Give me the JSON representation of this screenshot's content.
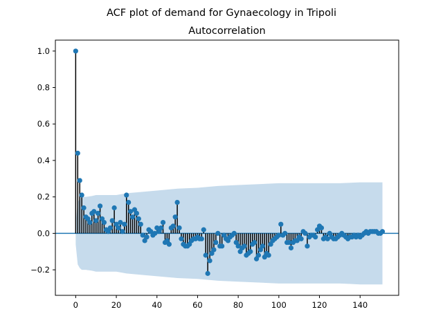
{
  "figure": {
    "suptitle": "ACF plot of demand for Gynaecology in Tripoli",
    "title": "Autocorrelation"
  },
  "colors": {
    "marker": "#1f77b4",
    "stem": "#000000",
    "baseline": "#1f77b4",
    "confidence_band": "#c6dbec"
  },
  "chart_data": {
    "type": "stem",
    "title": "Autocorrelation",
    "suptitle": "ACF plot of demand for Gynaecology in Tripoli",
    "xlabel": "",
    "ylabel": "",
    "xlim": [
      -10,
      159
    ],
    "ylim": [
      -0.34,
      1.06
    ],
    "xticks": [
      0,
      20,
      40,
      60,
      80,
      100,
      120,
      140
    ],
    "yticks": [
      -0.2,
      0.0,
      0.2,
      0.4,
      0.6,
      0.8,
      1.0
    ],
    "ytick_labels": [
      "−0.2",
      "0.0",
      "0.2",
      "0.4",
      "0.6",
      "0.8",
      "1.0"
    ],
    "grid": false,
    "lags": [
      0,
      1,
      2,
      3,
      4,
      5,
      6,
      7,
      8,
      9,
      10,
      11,
      12,
      13,
      14,
      15,
      16,
      17,
      18,
      19,
      20,
      21,
      22,
      23,
      24,
      25,
      26,
      27,
      28,
      29,
      30,
      31,
      32,
      33,
      34,
      35,
      36,
      37,
      38,
      39,
      40,
      41,
      42,
      43,
      44,
      45,
      46,
      47,
      48,
      49,
      50,
      51,
      52,
      53,
      54,
      55,
      56,
      57,
      58,
      59,
      60,
      61,
      62,
      63,
      64,
      65,
      66,
      67,
      68,
      69,
      70,
      71,
      72,
      73,
      74,
      75,
      76,
      77,
      78,
      79,
      80,
      81,
      82,
      83,
      84,
      85,
      86,
      87,
      88,
      89,
      90,
      91,
      92,
      93,
      94,
      95,
      96,
      97,
      98,
      99,
      100,
      101,
      102,
      103,
      104,
      105,
      106,
      107,
      108,
      109,
      110,
      111,
      112,
      113,
      114,
      115,
      116,
      117,
      118,
      119,
      120,
      121,
      122,
      123,
      124,
      125,
      126,
      127,
      128,
      129,
      130,
      131,
      132,
      133,
      134,
      135,
      136,
      137,
      138,
      139,
      140,
      141,
      142,
      143,
      144,
      145,
      146,
      147,
      148,
      149,
      150,
      151
    ],
    "acf": [
      1.0,
      0.44,
      0.29,
      0.21,
      0.14,
      0.09,
      0.08,
      0.06,
      0.11,
      0.12,
      0.07,
      0.11,
      0.15,
      0.08,
      0.06,
      0.02,
      0.01,
      0.03,
      0.07,
      0.14,
      0.05,
      0.03,
      0.06,
      0.01,
      0.05,
      0.21,
      0.17,
      0.12,
      0.09,
      0.13,
      0.11,
      0.08,
      0.05,
      -0.01,
      -0.04,
      -0.02,
      0.02,
      0.01,
      -0.01,
      0.0,
      0.03,
      0.01,
      0.03,
      0.06,
      -0.05,
      -0.04,
      -0.06,
      0.03,
      0.04,
      0.09,
      0.17,
      0.03,
      -0.03,
      -0.06,
      -0.07,
      -0.07,
      -0.06,
      -0.04,
      -0.03,
      -0.03,
      -0.02,
      -0.03,
      -0.03,
      0.02,
      -0.12,
      -0.22,
      -0.15,
      -0.11,
      -0.09,
      -0.05,
      0.0,
      -0.07,
      -0.07,
      -0.01,
      -0.03,
      -0.04,
      -0.02,
      -0.01,
      0.0,
      -0.05,
      -0.07,
      -0.1,
      -0.08,
      -0.07,
      -0.12,
      -0.11,
      -0.1,
      -0.06,
      -0.05,
      -0.14,
      -0.12,
      -0.09,
      -0.07,
      -0.13,
      -0.11,
      -0.12,
      -0.06,
      -0.04,
      -0.03,
      -0.02,
      -0.01,
      0.05,
      -0.01,
      0.0,
      -0.05,
      -0.05,
      -0.08,
      -0.05,
      -0.04,
      -0.04,
      -0.02,
      -0.03,
      0.01,
      0.0,
      -0.07,
      -0.02,
      -0.01,
      -0.01,
      -0.02,
      0.02,
      0.04,
      0.03,
      -0.03,
      -0.02,
      -0.03,
      0.0,
      -0.02,
      -0.03,
      -0.03,
      -0.02,
      -0.01,
      0.0,
      -0.01,
      -0.02,
      -0.03,
      -0.02,
      -0.02,
      -0.01,
      -0.02,
      -0.01,
      -0.02,
      -0.01,
      0.0,
      0.01,
      0.0,
      0.01,
      0.01,
      0.01,
      0.01,
      0.0,
      0.0,
      0.01
    ],
    "confidence_band": {
      "lags": [
        0,
        1,
        2,
        3,
        5,
        8,
        10,
        15,
        20,
        25,
        30,
        40,
        50,
        60,
        70,
        80,
        90,
        100,
        110,
        120,
        130,
        140,
        151
      ],
      "upper": [
        0.06,
        0.17,
        0.19,
        0.2,
        0.2,
        0.205,
        0.21,
        0.21,
        0.21,
        0.22,
        0.225,
        0.235,
        0.245,
        0.25,
        0.26,
        0.265,
        0.27,
        0.275,
        0.275,
        0.275,
        0.275,
        0.28,
        0.28
      ],
      "lower": [
        -0.06,
        -0.17,
        -0.19,
        -0.2,
        -0.2,
        -0.205,
        -0.21,
        -0.21,
        -0.21,
        -0.22,
        -0.225,
        -0.235,
        -0.245,
        -0.25,
        -0.26,
        -0.265,
        -0.27,
        -0.275,
        -0.275,
        -0.275,
        -0.275,
        -0.28,
        -0.28
      ]
    }
  }
}
